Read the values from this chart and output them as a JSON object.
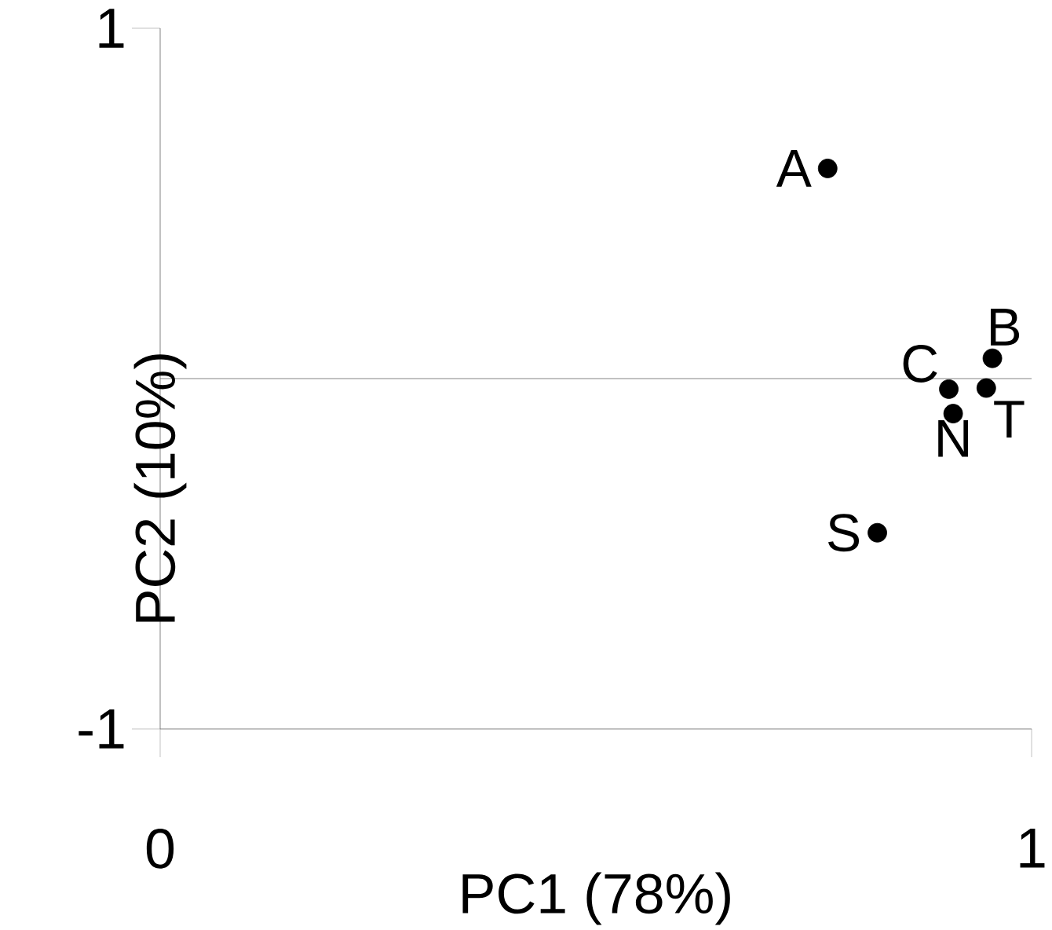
{
  "chart_data": {
    "type": "scatter",
    "xlabel": "PC1 (78%)",
    "ylabel": "PC2 (10%)",
    "x": [
      0.766,
      0.955,
      0.905,
      0.948,
      0.91,
      0.823
    ],
    "values": [
      0.6,
      0.058,
      -0.03,
      -0.027,
      -0.1,
      -0.44
    ],
    "color": "#000000",
    "marker": "circle",
    "xlim": [
      0,
      1
    ],
    "ylim": [
      -1,
      1
    ],
    "xticks": [
      0,
      1
    ],
    "yticks": [
      -1,
      1
    ],
    "ref_lines": [
      {
        "axis": "y",
        "value": 0
      }
    ],
    "annotations": [
      {
        "text": "A",
        "x": 0.766,
        "y": 0.6
      },
      {
        "text": "B",
        "x": 0.955,
        "y": 0.058
      },
      {
        "text": "C",
        "x": 0.905,
        "y": -0.03
      },
      {
        "text": "T",
        "x": 0.948,
        "y": -0.027
      },
      {
        "text": "N",
        "x": 0.91,
        "y": -0.1
      },
      {
        "text": "S",
        "x": 0.823,
        "y": -0.44
      }
    ]
  }
}
